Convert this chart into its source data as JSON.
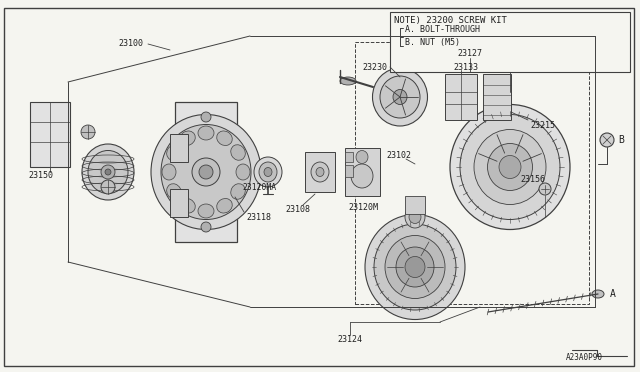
{
  "bg_color": "#f5f5f0",
  "line_color": "#404040",
  "text_color": "#202020",
  "footer": "A23A0P90",
  "note_text": "NOTE) 23200 SCREW KIT",
  "note_a": "A. BOLT-THROUGH",
  "note_b": "B. NUT (M5)",
  "label_23127": "23127",
  "label_23156": "23156",
  "label_23100": "23100",
  "label_23150": "23150",
  "label_23118": "23118",
  "label_23120MA": "23120MA",
  "label_23108": "23108",
  "label_23120M": "23120M",
  "label_23102": "23102",
  "label_23215": "23215",
  "label_23230": "23230",
  "label_23133": "23133",
  "label_23124": "23124",
  "label_A": "A",
  "label_B": "B"
}
